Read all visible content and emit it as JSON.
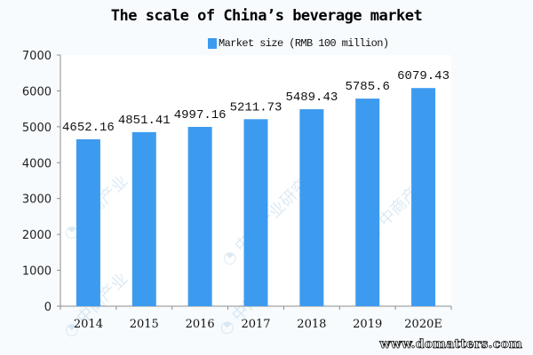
{
  "chart_data": {
    "type": "bar",
    "title": "The scale of China's beverage market",
    "xlabel": "",
    "ylabel": "",
    "categories": [
      "2014",
      "2015",
      "2016",
      "2017",
      "2018",
      "2019",
      "2020E"
    ],
    "series": [
      {
        "name": "Market size (RMB 100 million)",
        "color": "#3d9bef",
        "values": [
          4652.16,
          4851.41,
          4997.16,
          5211.73,
          5489.43,
          5785.6,
          6079.43
        ],
        "labels": [
          "4652.16",
          "4851.41",
          "4997.16",
          "5211.73",
          "5489.43",
          "5785.6",
          "6079.43"
        ]
      }
    ],
    "ylim": [
      0,
      7000
    ],
    "yticks": [
      0,
      1000,
      2000,
      3000,
      4000,
      5000,
      6000,
      7000
    ],
    "grid": false,
    "legend_position": "top"
  },
  "header": {
    "title": "The scale of China’s beverage market",
    "legend_label": "Market size (RMB 100 million)"
  },
  "watermark": {
    "site": "www.domatters.com"
  }
}
